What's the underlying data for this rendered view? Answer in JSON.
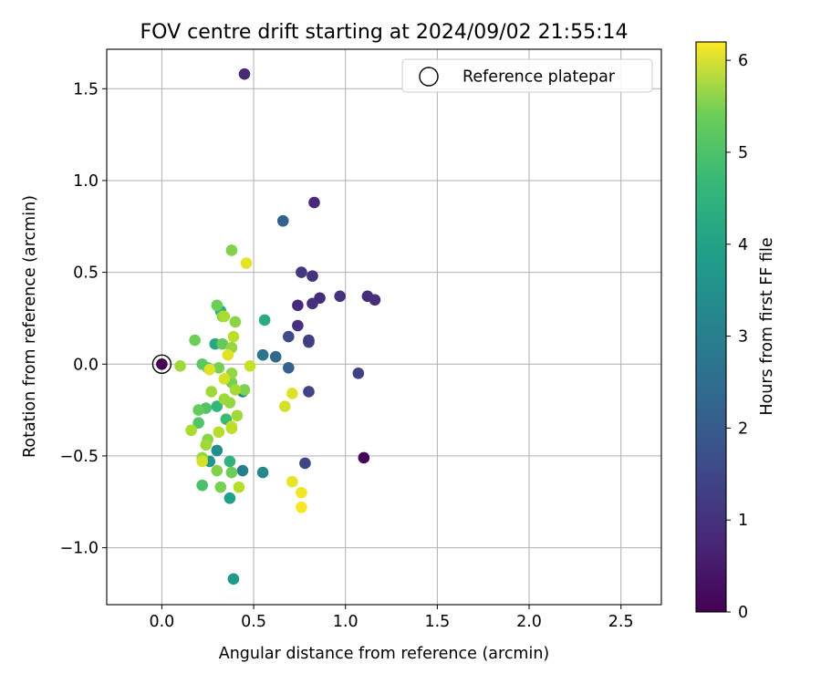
{
  "chart_data": {
    "type": "scatter",
    "title": "FOV centre drift starting at 2024/09/02 21:55:14",
    "xlabel": "Angular distance from reference (arcmin)",
    "ylabel": "Rotation from reference (arcmin)",
    "xlim": [
      -0.3,
      2.72
    ],
    "ylim": [
      -1.31,
      1.715
    ],
    "xticks": [
      0.0,
      0.5,
      1.0,
      1.5,
      2.0,
      2.5
    ],
    "xtick_labels": [
      "0.0",
      "0.5",
      "1.0",
      "1.5",
      "2.0",
      "2.5"
    ],
    "yticks": [
      -1.0,
      -0.5,
      0.0,
      0.5,
      1.0,
      1.5
    ],
    "ytick_labels": [
      "−1.0",
      "−0.5",
      "0.0",
      "0.5",
      "1.0",
      "1.5"
    ],
    "grid": true,
    "legend": {
      "position": "top-right",
      "entries": [
        "Reference platepar"
      ]
    },
    "reference_point": {
      "x": 0.0,
      "y": 0.0,
      "label": "Reference platepar"
    },
    "colorbar": {
      "label": "Hours from first FF file",
      "range": [
        0,
        6.2
      ],
      "ticks": [
        0,
        1,
        2,
        3,
        4,
        5,
        6
      ],
      "tick_labels": [
        "0",
        "1",
        "2",
        "3",
        "4",
        "5",
        "6"
      ],
      "colormap": "viridis"
    },
    "points": [
      {
        "x": 0.0,
        "y": 0.0,
        "h": 0.0
      },
      {
        "x": 1.1,
        "y": -0.51,
        "h": 0.05
      },
      {
        "x": 0.45,
        "y": 1.58,
        "h": 0.7
      },
      {
        "x": 0.83,
        "y": 0.88,
        "h": 0.75
      },
      {
        "x": 1.12,
        "y": 0.37,
        "h": 0.8
      },
      {
        "x": 1.16,
        "y": 0.35,
        "h": 0.85
      },
      {
        "x": 0.97,
        "y": 0.37,
        "h": 0.9
      },
      {
        "x": 0.86,
        "y": 0.36,
        "h": 0.8
      },
      {
        "x": 0.82,
        "y": 0.33,
        "h": 0.85
      },
      {
        "x": 0.82,
        "y": 0.48,
        "h": 0.9
      },
      {
        "x": 0.76,
        "y": 0.5,
        "h": 1.0
      },
      {
        "x": 0.74,
        "y": 0.32,
        "h": 0.75
      },
      {
        "x": 0.74,
        "y": 0.21,
        "h": 0.9
      },
      {
        "x": 1.07,
        "y": -0.05,
        "h": 1.2
      },
      {
        "x": 0.8,
        "y": 0.12,
        "h": 1.3
      },
      {
        "x": 0.8,
        "y": 0.13,
        "h": 1.1
      },
      {
        "x": 0.69,
        "y": 0.15,
        "h": 1.4
      },
      {
        "x": 0.8,
        "y": -0.15,
        "h": 1.25
      },
      {
        "x": 0.78,
        "y": -0.54,
        "h": 1.3
      },
      {
        "x": 0.66,
        "y": 0.78,
        "h": 1.9
      },
      {
        "x": 0.69,
        "y": -0.02,
        "h": 1.9
      },
      {
        "x": 0.62,
        "y": 0.04,
        "h": 2.1
      },
      {
        "x": 0.55,
        "y": 0.05,
        "h": 2.4
      },
      {
        "x": 0.44,
        "y": -0.58,
        "h": 2.6
      },
      {
        "x": 0.55,
        "y": -0.59,
        "h": 2.9
      },
      {
        "x": 0.44,
        "y": -0.15,
        "h": 2.8
      },
      {
        "x": 0.3,
        "y": -0.47,
        "h": 3.0
      },
      {
        "x": 0.26,
        "y": -0.53,
        "h": 3.2
      },
      {
        "x": 0.39,
        "y": -1.17,
        "h": 3.3
      },
      {
        "x": 0.37,
        "y": -0.73,
        "h": 3.5
      },
      {
        "x": 0.29,
        "y": 0.11,
        "h": 3.7
      },
      {
        "x": 0.56,
        "y": 0.24,
        "h": 3.8
      },
      {
        "x": 0.32,
        "y": 0.29,
        "h": 3.9
      },
      {
        "x": 0.37,
        "y": -0.53,
        "h": 4.0
      },
      {
        "x": 0.3,
        "y": -0.23,
        "h": 4.1
      },
      {
        "x": 0.35,
        "y": -0.3,
        "h": 4.2
      },
      {
        "x": 0.22,
        "y": -0.66,
        "h": 4.4
      },
      {
        "x": 0.24,
        "y": -0.24,
        "h": 4.5
      },
      {
        "x": 0.22,
        "y": 0.0,
        "h": 4.6
      },
      {
        "x": 0.2,
        "y": -0.25,
        "h": 4.7
      },
      {
        "x": 0.2,
        "y": -0.32,
        "h": 4.5
      },
      {
        "x": 0.18,
        "y": 0.13,
        "h": 4.8
      },
      {
        "x": 0.25,
        "y": -0.02,
        "h": 4.6
      },
      {
        "x": 0.3,
        "y": 0.32,
        "h": 4.8
      },
      {
        "x": 0.33,
        "y": 0.11,
        "h": 4.7
      },
      {
        "x": 0.31,
        "y": -0.02,
        "h": 4.9
      },
      {
        "x": 0.38,
        "y": -0.59,
        "h": 4.8
      },
      {
        "x": 0.32,
        "y": -0.67,
        "h": 4.9
      },
      {
        "x": 0.3,
        "y": -0.58,
        "h": 5.0
      },
      {
        "x": 0.38,
        "y": -0.1,
        "h": 4.9
      },
      {
        "x": 0.45,
        "y": -0.14,
        "h": 5.0
      },
      {
        "x": 0.33,
        "y": 0.26,
        "h": 5.1
      },
      {
        "x": 0.38,
        "y": 0.62,
        "h": 5.0
      },
      {
        "x": 0.38,
        "y": 0.09,
        "h": 5.2
      },
      {
        "x": 0.4,
        "y": 0.23,
        "h": 5.1
      },
      {
        "x": 0.38,
        "y": -0.05,
        "h": 5.2
      },
      {
        "x": 0.34,
        "y": -0.19,
        "h": 5.3
      },
      {
        "x": 0.37,
        "y": -0.21,
        "h": 5.2
      },
      {
        "x": 0.41,
        "y": -0.28,
        "h": 5.3
      },
      {
        "x": 0.4,
        "y": -0.14,
        "h": 5.35
      },
      {
        "x": 0.27,
        "y": -0.15,
        "h": 5.3
      },
      {
        "x": 0.25,
        "y": -0.41,
        "h": 5.1
      },
      {
        "x": 0.24,
        "y": -0.44,
        "h": 5.3
      },
      {
        "x": 0.22,
        "y": -0.51,
        "h": 5.2
      },
      {
        "x": 0.16,
        "y": -0.36,
        "h": 5.4
      },
      {
        "x": 0.1,
        "y": -0.01,
        "h": 5.3
      },
      {
        "x": 0.34,
        "y": 0.26,
        "h": 5.4
      },
      {
        "x": 0.42,
        "y": -0.67,
        "h": 5.5
      },
      {
        "x": 0.31,
        "y": -0.37,
        "h": 5.5
      },
      {
        "x": 0.39,
        "y": 0.15,
        "h": 5.6
      },
      {
        "x": 0.38,
        "y": -0.34,
        "h": 5.7
      },
      {
        "x": 0.38,
        "y": -0.35,
        "h": 5.6
      },
      {
        "x": 0.34,
        "y": -0.08,
        "h": 5.8
      },
      {
        "x": 0.48,
        "y": -0.01,
        "h": 5.7
      },
      {
        "x": 0.22,
        "y": -0.53,
        "h": 5.8
      },
      {
        "x": 0.36,
        "y": 0.05,
        "h": 5.9
      },
      {
        "x": 0.26,
        "y": -0.03,
        "h": 5.9
      },
      {
        "x": 0.46,
        "y": 0.55,
        "h": 5.95
      },
      {
        "x": 0.67,
        "y": -0.23,
        "h": 5.8
      },
      {
        "x": 0.71,
        "y": -0.16,
        "h": 5.9
      },
      {
        "x": 0.71,
        "y": -0.64,
        "h": 6.0
      },
      {
        "x": 0.76,
        "y": -0.7,
        "h": 6.1
      },
      {
        "x": 0.76,
        "y": -0.78,
        "h": 6.15
      }
    ]
  }
}
